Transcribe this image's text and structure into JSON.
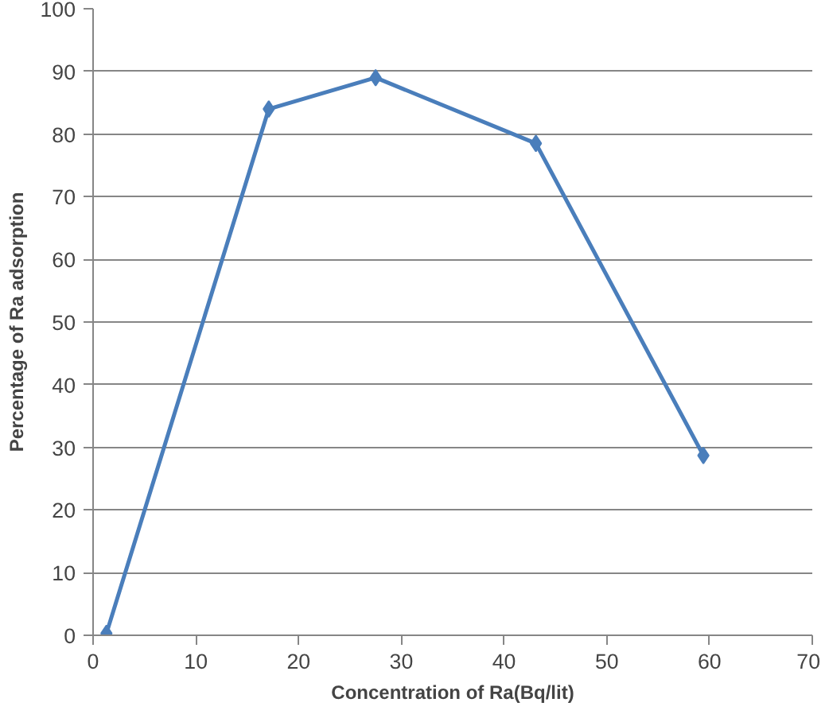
{
  "chart_data": {
    "type": "line",
    "xlabel": "Concentration of Ra(Bq/lit)",
    "ylabel": "Percentage of Ra adsorption",
    "x": [
      1.3,
      17.1,
      27.5,
      43.1,
      59.4
    ],
    "series": [
      {
        "color": "#4a7ebb",
        "values": [
          0.3,
          84,
          89,
          78.5,
          28.7
        ]
      }
    ],
    "xlim": [
      0,
      70
    ],
    "xticks": [
      0,
      10,
      20,
      30,
      40,
      50,
      60,
      70
    ],
    "ylim": [
      0,
      100
    ],
    "yticks": [
      0,
      10,
      20,
      30,
      40,
      50,
      60,
      70,
      80,
      90,
      100
    ],
    "grid": "y",
    "marker": "diamond",
    "line_style": "solid"
  }
}
